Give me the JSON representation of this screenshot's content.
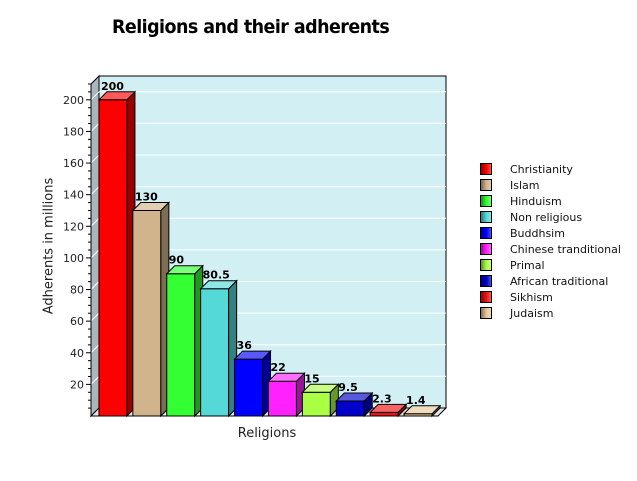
{
  "chart_data": {
    "type": "bar",
    "title": "Religions and their adherents",
    "xlabel": "Religions",
    "ylabel": "Adherents in millions",
    "ylim": [
      0,
      210
    ],
    "yticks": [
      20,
      40,
      60,
      80,
      100,
      120,
      140,
      160,
      180,
      200
    ],
    "grid": true,
    "legend_position": "right",
    "categories": [
      "Christianity",
      "Islam",
      "Hinduism",
      "Non religious",
      "Buddhsim",
      "Chinese tranditional",
      "Primal",
      "African traditional",
      "Sikhism",
      "Judaism"
    ],
    "values": [
      200,
      130,
      90,
      80.5,
      36,
      22,
      15,
      9.5,
      2.3,
      1.4
    ],
    "value_labels": [
      "200",
      "130",
      "90",
      "80.5",
      "36",
      "22",
      "15",
      "9.5",
      "2.3",
      "1.4"
    ],
    "colors": [
      "#ff0000",
      "#d2b48c",
      "#33ff33",
      "#55d8d8",
      "#0000ff",
      "#ff22ff",
      "#aaff44",
      "#0000cc",
      "#ee1111",
      "#e8c898"
    ],
    "plot_background": "#d2f0f4"
  }
}
